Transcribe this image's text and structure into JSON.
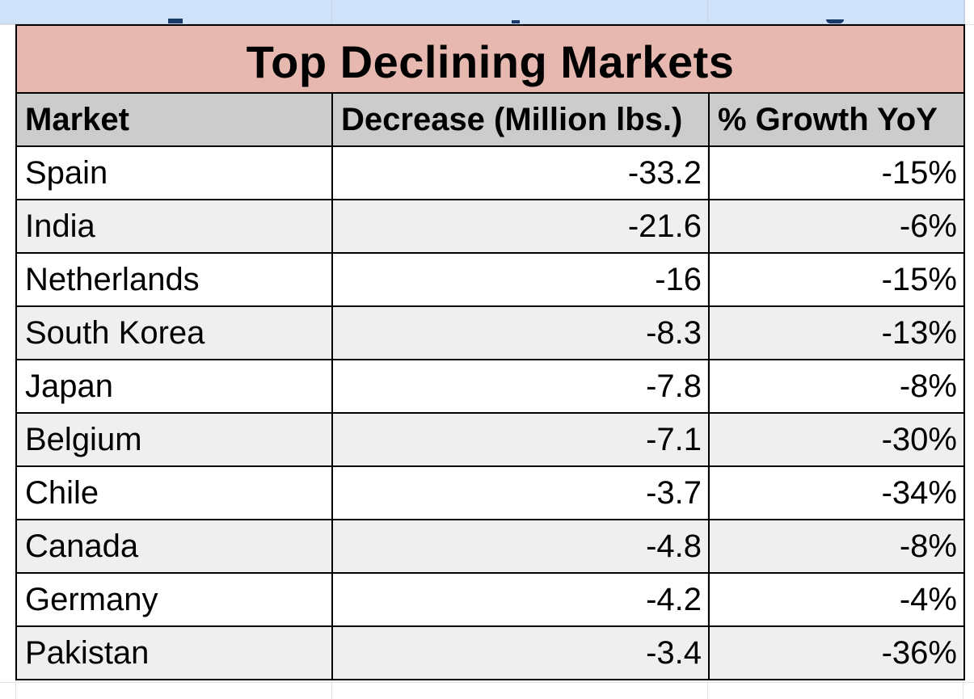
{
  "table": {
    "title": "Top Declining Markets",
    "columns": [
      "Market",
      "Decrease (Million lbs.)",
      "% Growth YoY"
    ],
    "rows": [
      {
        "market": "Spain",
        "decrease": "-33.2",
        "growth": "-15%"
      },
      {
        "market": "India",
        "decrease": "-21.6",
        "growth": "-6%"
      },
      {
        "market": "Netherlands",
        "decrease": "-16",
        "growth": "-15%"
      },
      {
        "market": "South Korea",
        "decrease": "-8.3",
        "growth": "-13%"
      },
      {
        "market": "Japan",
        "decrease": "-7.8",
        "growth": "-8%"
      },
      {
        "market": "Belgium",
        "decrease": "-7.1",
        "growth": "-30%"
      },
      {
        "market": "Chile",
        "decrease": "-3.7",
        "growth": "-34%"
      },
      {
        "market": "Canada",
        "decrease": "-4.8",
        "growth": "-8%"
      },
      {
        "market": "Germany",
        "decrease": "-4.2",
        "growth": "-4%"
      },
      {
        "market": "Pakistan",
        "decrease": "-3.4",
        "growth": "-36%"
      }
    ]
  },
  "colors": {
    "title_bg": "#e6b8af",
    "header_bg": "#cccccc",
    "alt_row_bg": "#efefef",
    "top_strip_bg": "#cfe2f9"
  }
}
